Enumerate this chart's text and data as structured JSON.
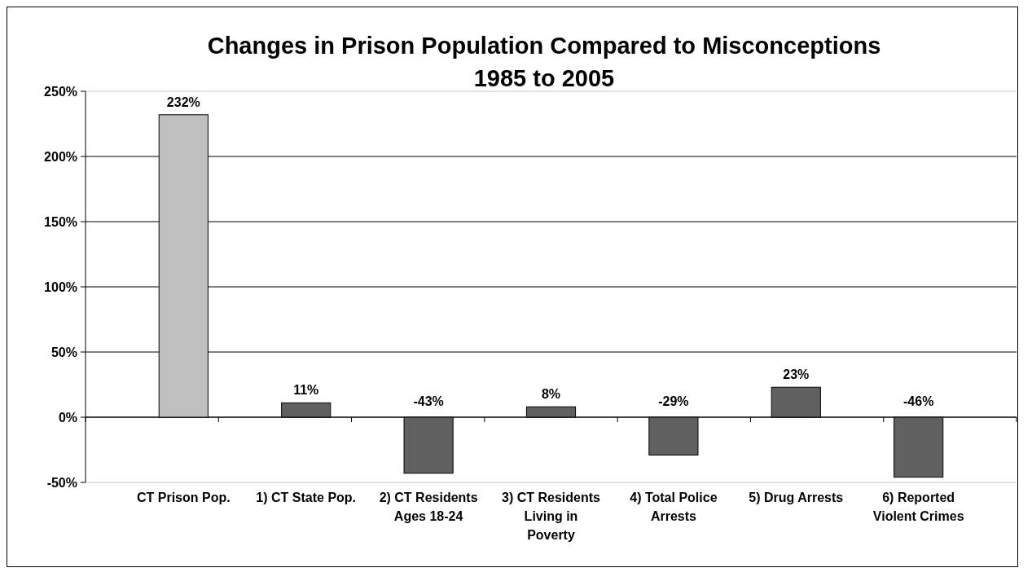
{
  "chart_data": {
    "type": "bar",
    "title": "Changes in Prison Population Compared to Misconceptions",
    "subtitle": "1985 to 2005",
    "categories": [
      "CT Prison Pop.",
      "1) CT State Pop.",
      "2) CT Residents Ages 18-24",
      "3) CT Residents Living in Poverty",
      "4) Total Police Arrests",
      "5) Drug Arrests",
      "6) Reported Violent Crimes"
    ],
    "values": [
      232,
      11,
      -43,
      8,
      -29,
      23,
      -46
    ],
    "value_labels": [
      "232%",
      "11%",
      "-43%",
      "8%",
      "-29%",
      "23%",
      "-46%"
    ],
    "colors": [
      "#c0c0c0",
      "#606060",
      "#606060",
      "#606060",
      "#606060",
      "#606060",
      "#606060"
    ],
    "ylim": [
      -50,
      250
    ],
    "yticks": [
      {
        "value": -50,
        "label": "-50%"
      },
      {
        "value": 0,
        "label": "0%"
      },
      {
        "value": 50,
        "label": "50%"
      },
      {
        "value": 100,
        "label": "100%"
      },
      {
        "value": 150,
        "label": "150%"
      },
      {
        "value": 200,
        "label": "200%"
      },
      {
        "value": 250,
        "label": "250%"
      }
    ],
    "grid": "y"
  }
}
